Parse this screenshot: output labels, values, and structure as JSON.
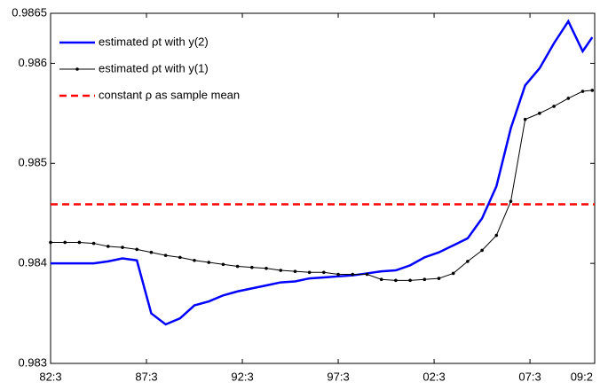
{
  "chart_data": {
    "type": "line",
    "x": [
      0,
      3,
      6,
      9,
      12,
      15,
      18,
      21,
      24,
      27,
      30,
      33,
      36,
      39,
      42,
      45,
      48,
      51,
      54,
      57,
      60,
      63,
      66,
      69,
      72,
      75,
      78,
      81,
      84,
      87,
      90,
      93,
      96,
      99,
      102,
      105,
      108,
      111,
      113
    ],
    "xlim": [
      0,
      113.5
    ],
    "xticks": [
      {
        "value": 0,
        "label": "82:3"
      },
      {
        "value": 20,
        "label": "87:3"
      },
      {
        "value": 40,
        "label": "92:3"
      },
      {
        "value": 60,
        "label": "97:3"
      },
      {
        "value": 80,
        "label": "02:3"
      },
      {
        "value": 100,
        "label": "07:3"
      },
      {
        "value": 113.5,
        "label": "09:2"
      }
    ],
    "ylim": [
      0.983,
      0.9865
    ],
    "yticks": [
      0.983,
      0.984,
      0.985,
      0.986,
      0.9865
    ],
    "series": [
      {
        "name": "estimated ρt with y(2)",
        "color": "#0000ff",
        "markers": false,
        "values": [
          0.984,
          0.984,
          0.984,
          0.984,
          0.98402,
          0.98405,
          0.98403,
          0.9835,
          0.98339,
          0.98345,
          0.98358,
          0.98362,
          0.98368,
          0.98372,
          0.98375,
          0.98378,
          0.98381,
          0.98382,
          0.98385,
          0.98386,
          0.98387,
          0.98388,
          0.9839,
          0.98392,
          0.98393,
          0.98398,
          0.98406,
          0.98411,
          0.98418,
          0.98425,
          0.98445,
          0.98477,
          0.98535,
          0.98578,
          0.98595,
          0.9862,
          0.98642,
          0.98612,
          0.98626
        ]
      },
      {
        "name": "estimated ρt with y(1)",
        "color": "#000000",
        "markers": true,
        "values": [
          0.98421,
          0.98421,
          0.98421,
          0.9842,
          0.98417,
          0.98416,
          0.98414,
          0.98411,
          0.98408,
          0.98406,
          0.98403,
          0.98401,
          0.98399,
          0.98397,
          0.98396,
          0.98395,
          0.98393,
          0.98392,
          0.98391,
          0.98391,
          0.98389,
          0.98389,
          0.98389,
          0.98384,
          0.98383,
          0.98383,
          0.98384,
          0.98385,
          0.9839,
          0.98402,
          0.98413,
          0.98428,
          0.98462,
          0.98544,
          0.9855,
          0.98557,
          0.98565,
          0.98572,
          0.98573
        ]
      }
    ],
    "reference": {
      "name": "constant ρ as sample mean",
      "color": "#ff0000",
      "value": 0.98459
    }
  }
}
